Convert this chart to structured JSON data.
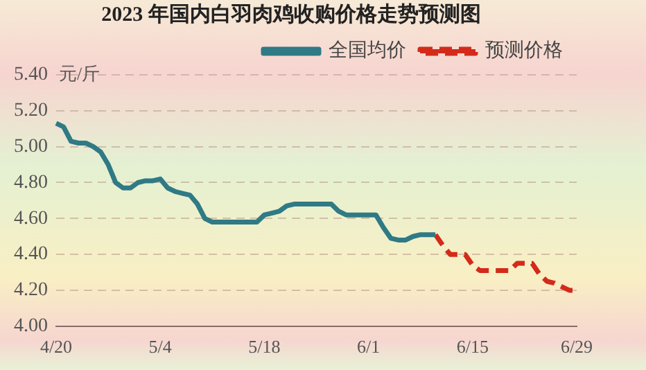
{
  "chart_data": {
    "type": "line",
    "title": "2023 年国内白羽肉鸡收购价格走势预测图",
    "ylabel": "元/斤",
    "categories": [
      "4/20",
      null,
      null,
      null,
      null,
      null,
      null,
      null,
      null,
      null,
      null,
      null,
      null,
      null,
      "5/4",
      null,
      null,
      null,
      null,
      null,
      null,
      null,
      null,
      null,
      null,
      null,
      null,
      null,
      "5/18",
      null,
      null,
      null,
      null,
      null,
      null,
      null,
      null,
      null,
      null,
      null,
      null,
      null,
      "6/1",
      null,
      null,
      null,
      null,
      null,
      null,
      null,
      null,
      null,
      null,
      null,
      null,
      null,
      "6/15",
      null,
      null,
      null,
      null,
      null,
      null,
      null,
      null,
      null,
      null,
      null,
      null,
      null,
      "6/29"
    ],
    "series": [
      {
        "name": "全国均价",
        "color": "#2f7a85",
        "line_style": "solid",
        "values": [
          5.13,
          5.11,
          5.03,
          5.02,
          5.02,
          5.0,
          4.97,
          4.9,
          4.8,
          4.77,
          4.77,
          4.8,
          4.81,
          4.81,
          4.82,
          4.77,
          4.75,
          4.74,
          4.73,
          4.68,
          4.6,
          4.58,
          4.58,
          4.58,
          4.58,
          4.58,
          4.58,
          4.58,
          4.62,
          4.63,
          4.64,
          4.67,
          4.68,
          4.68,
          4.68,
          4.68,
          4.68,
          4.68,
          4.64,
          4.62,
          4.62,
          4.62,
          4.62,
          4.62,
          4.55,
          4.49,
          4.48,
          4.48,
          4.5,
          4.51,
          4.51,
          4.51,
          null,
          null,
          null,
          null,
          null,
          null,
          null,
          null,
          null,
          null,
          null,
          null,
          null,
          null,
          null,
          null,
          null,
          null,
          null
        ]
      },
      {
        "name": "预测价格",
        "color": "#d42a1a",
        "line_style": "dashed",
        "values": [
          null,
          null,
          null,
          null,
          null,
          null,
          null,
          null,
          null,
          null,
          null,
          null,
          null,
          null,
          null,
          null,
          null,
          null,
          null,
          null,
          null,
          null,
          null,
          null,
          null,
          null,
          null,
          null,
          null,
          null,
          null,
          null,
          null,
          null,
          null,
          null,
          null,
          null,
          null,
          null,
          null,
          null,
          null,
          null,
          null,
          null,
          null,
          null,
          null,
          null,
          null,
          4.51,
          4.45,
          4.4,
          4.4,
          4.4,
          4.34,
          4.31,
          4.31,
          4.31,
          4.31,
          4.31,
          4.35,
          4.35,
          4.35,
          4.29,
          4.25,
          4.24,
          4.22,
          4.2,
          4.2
        ]
      }
    ],
    "ylim": [
      4.0,
      5.4
    ],
    "yticks": [
      {
        "value": 4.0,
        "label": "4.00"
      },
      {
        "value": 4.2,
        "label": "4.20"
      },
      {
        "value": 4.4,
        "label": "4.40"
      },
      {
        "value": 4.6,
        "label": "4.60"
      },
      {
        "value": 4.8,
        "label": "4.80"
      },
      {
        "value": 5.0,
        "label": "5.00"
      },
      {
        "value": 5.2,
        "label": "5.20"
      },
      {
        "value": 5.4,
        "label": "5.40"
      }
    ],
    "grid": "y",
    "legend": "top right",
    "marker": "none"
  }
}
